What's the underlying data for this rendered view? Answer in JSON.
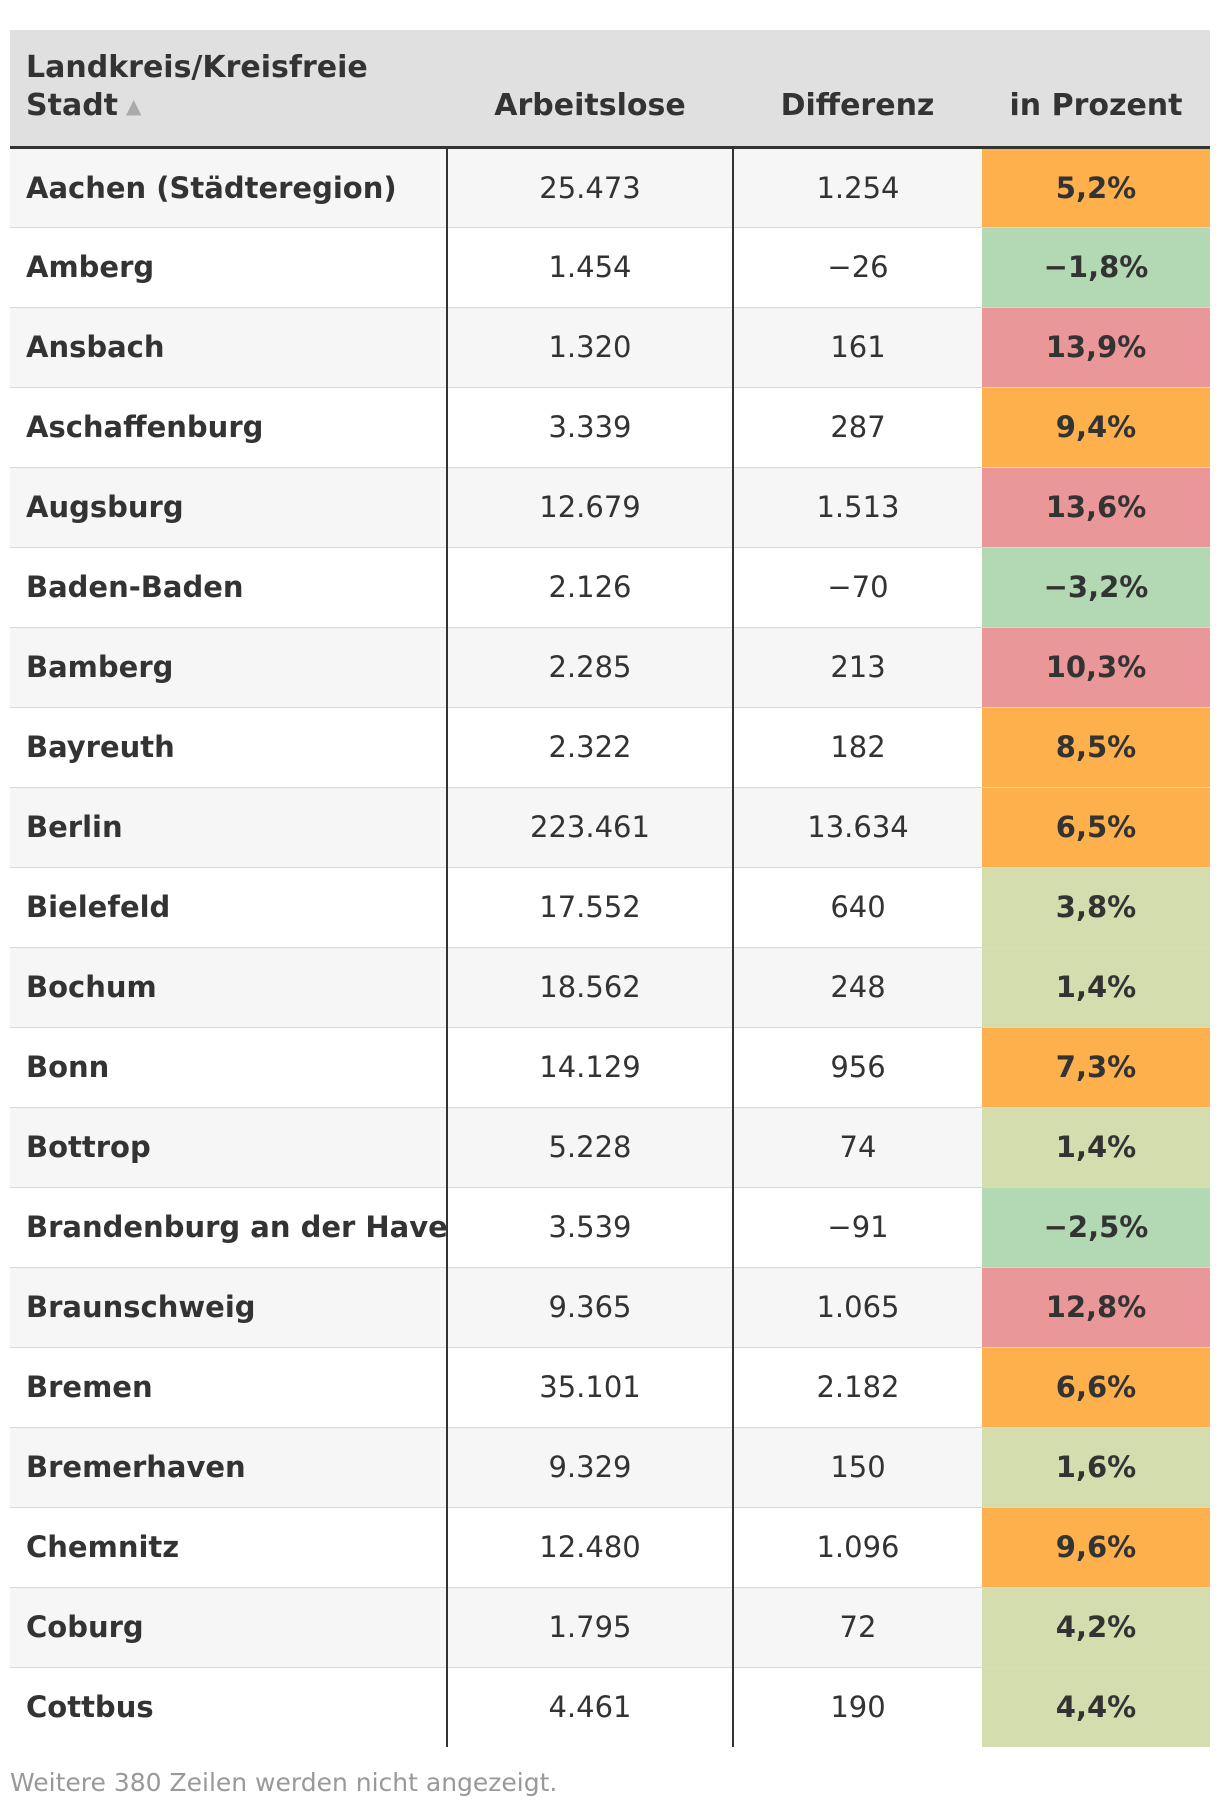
{
  "table": {
    "headers": {
      "name_line1": "Landkreis/Kreisfreie",
      "name_line2": "Stadt",
      "sort_indicator": "▲",
      "arbeitslose": "Arbeitslose",
      "differenz": "Differenz",
      "prozent": "in Prozent"
    },
    "rows": [
      {
        "name": "Aachen (Städteregion)",
        "arbeitslose": "25.473",
        "differenz": "1.254",
        "prozent": "5,2%",
        "color": "#fdb04c"
      },
      {
        "name": "Amberg",
        "arbeitslose": "1.454",
        "differenz": "−26",
        "prozent": "−1,8%",
        "color": "#b2d9b3"
      },
      {
        "name": "Ansbach",
        "arbeitslose": "1.320",
        "differenz": "161",
        "prozent": "13,9%",
        "color": "#e99798"
      },
      {
        "name": "Aschaffenburg",
        "arbeitslose": "3.339",
        "differenz": "287",
        "prozent": "9,4%",
        "color": "#fdb04c"
      },
      {
        "name": "Augsburg",
        "arbeitslose": "12.679",
        "differenz": "1.513",
        "prozent": "13,6%",
        "color": "#e99798"
      },
      {
        "name": "Baden-Baden",
        "arbeitslose": "2.126",
        "differenz": "−70",
        "prozent": "−3,2%",
        "color": "#b2d9b3"
      },
      {
        "name": "Bamberg",
        "arbeitslose": "2.285",
        "differenz": "213",
        "prozent": "10,3%",
        "color": "#e99798"
      },
      {
        "name": "Bayreuth",
        "arbeitslose": "2.322",
        "differenz": "182",
        "prozent": "8,5%",
        "color": "#fdb04c"
      },
      {
        "name": "Berlin",
        "arbeitslose": "223.461",
        "differenz": "13.634",
        "prozent": "6,5%",
        "color": "#fdb04c"
      },
      {
        "name": "Bielefeld",
        "arbeitslose": "17.552",
        "differenz": "640",
        "prozent": "3,8%",
        "color": "#d3ddad"
      },
      {
        "name": "Bochum",
        "arbeitslose": "18.562",
        "differenz": "248",
        "prozent": "1,4%",
        "color": "#d3ddad"
      },
      {
        "name": "Bonn",
        "arbeitslose": "14.129",
        "differenz": "956",
        "prozent": "7,3%",
        "color": "#fdb04c"
      },
      {
        "name": "Bottrop",
        "arbeitslose": "5.228",
        "differenz": "74",
        "prozent": "1,4%",
        "color": "#d3ddad"
      },
      {
        "name": "Brandenburg an der Havel",
        "arbeitslose": "3.539",
        "differenz": "−91",
        "prozent": "−2,5%",
        "color": "#b2d9b3"
      },
      {
        "name": "Braunschweig",
        "arbeitslose": "9.365",
        "differenz": "1.065",
        "prozent": "12,8%",
        "color": "#e99798"
      },
      {
        "name": "Bremen",
        "arbeitslose": "35.101",
        "differenz": "2.182",
        "prozent": "6,6%",
        "color": "#fdb04c"
      },
      {
        "name": "Bremerhaven",
        "arbeitslose": "9.329",
        "differenz": "150",
        "prozent": "1,6%",
        "color": "#d3ddad"
      },
      {
        "name": "Chemnitz",
        "arbeitslose": "12.480",
        "differenz": "1.096",
        "prozent": "9,6%",
        "color": "#fdb04c"
      },
      {
        "name": "Coburg",
        "arbeitslose": "1.795",
        "differenz": "72",
        "prozent": "4,2%",
        "color": "#d3ddad"
      },
      {
        "name": "Cottbus",
        "arbeitslose": "4.461",
        "differenz": "190",
        "prozent": "4,4%",
        "color": "#d3ddad"
      }
    ]
  },
  "footnote": "Weitere 380 Zeilen werden nicht angezeigt."
}
